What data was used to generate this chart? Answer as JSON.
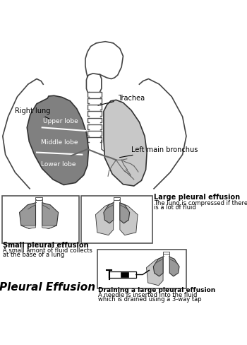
{
  "title": "Pleural Effusion",
  "background_color": "#ffffff",
  "labels": {
    "trachea": "Trachea",
    "right_lung": "Right lung",
    "left_main_bronchus": "Left main bronchus",
    "upper_lobe": "Upper lobe",
    "middle_lobe": "Middle lobe",
    "lower_lobe": "Lower lobe",
    "small_effusion_title": "Small pleural effusion",
    "small_effusion_desc1": "A small amont of fluid collects",
    "small_effusion_desc2": "at the base of a lung",
    "large_effusion_title": "Large pleural effusion",
    "large_effusion_desc1": "The lung is compressed if there",
    "large_effusion_desc2": "is a lot of fluid",
    "draining_title": "Draining a large pleural effusion",
    "draining_desc1": "A needle is inserted into the fluid",
    "draining_desc2": "which is drained using a 3-way tap"
  },
  "colors": {
    "lung_dark": "#808080",
    "lung_mid": "#999999",
    "lung_light": "#c8c8c8",
    "fluid": "#b0b0b0",
    "outline": "#333333",
    "box_outline": "#555555",
    "body_outline": "#444444",
    "trachea_rings": "#555555",
    "bronchi": "#666666"
  }
}
